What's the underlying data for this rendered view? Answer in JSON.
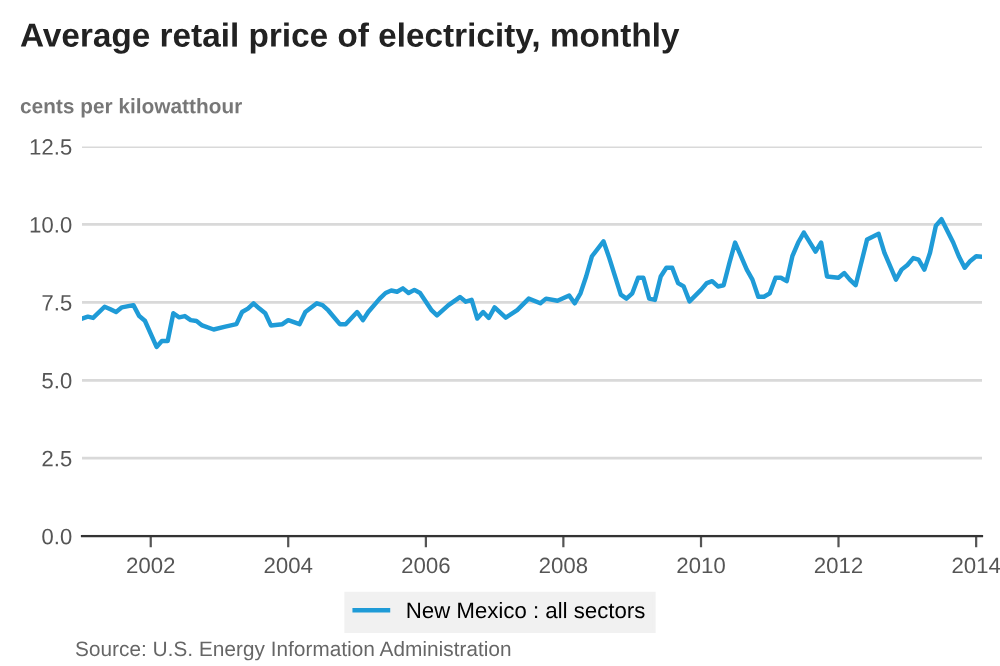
{
  "chart_data": {
    "type": "line",
    "title": "Average retail price of electricity, monthly",
    "ylabel": "cents per kilowatthour",
    "annotations": [
      "Source: U.S. Energy Information Administration"
    ],
    "x": [
      "2001-01",
      "2001-02",
      "2001-03",
      "2001-05",
      "2001-06",
      "2001-07",
      "2001-08",
      "2001-10",
      "2001-11",
      "2001-12",
      "2002-02",
      "2002-03",
      "2002-04",
      "2002-05",
      "2002-06",
      "2002-07",
      "2002-08",
      "2002-09",
      "2002-10",
      "2002-12",
      "2003-02",
      "2003-04",
      "2003-05",
      "2003-06",
      "2003-07",
      "2003-08",
      "2003-09",
      "2003-10",
      "2003-12",
      "2004-01",
      "2004-03",
      "2004-04",
      "2004-06",
      "2004-07",
      "2004-08",
      "2004-10",
      "2004-11",
      "2005-01",
      "2005-02",
      "2005-03",
      "2005-05",
      "2005-06",
      "2005-07",
      "2005-08",
      "2005-09",
      "2005-10",
      "2005-11",
      "2005-12",
      "2006-02",
      "2006-03",
      "2006-05",
      "2006-07",
      "2006-08",
      "2006-09",
      "2006-10",
      "2006-11",
      "2006-12",
      "2007-01",
      "2007-03",
      "2007-05",
      "2007-07",
      "2007-09",
      "2007-10",
      "2007-12",
      "2008-02",
      "2008-03",
      "2008-04",
      "2008-05",
      "2008-06",
      "2008-08",
      "2008-09",
      "2008-11",
      "2008-12",
      "2009-01",
      "2009-02",
      "2009-03",
      "2009-04",
      "2009-05",
      "2009-06",
      "2009-07",
      "2009-08",
      "2009-09",
      "2009-10",
      "2009-11",
      "2010-01",
      "2010-02",
      "2010-03",
      "2010-04",
      "2010-05",
      "2010-06",
      "2010-07",
      "2010-09",
      "2010-10",
      "2010-11",
      "2010-12",
      "2011-01",
      "2011-02",
      "2011-03",
      "2011-04",
      "2011-05",
      "2011-06",
      "2011-07",
      "2011-09",
      "2011-10",
      "2011-11",
      "2012-01",
      "2012-02",
      "2012-03",
      "2012-04",
      "2012-05",
      "2012-06",
      "2012-08",
      "2012-09",
      "2012-11",
      "2012-12",
      "2013-01",
      "2013-02",
      "2013-03",
      "2013-04",
      "2013-05",
      "2013-06",
      "2013-07",
      "2013-09",
      "2013-10",
      "2013-11",
      "2013-12",
      "2014-01",
      "2014-02"
    ],
    "series": [
      {
        "name": "New Mexico : all sectors",
        "color": "#1f9bd7",
        "values": [
          6.98,
          7.04,
          7.0,
          7.36,
          7.28,
          7.19,
          7.34,
          7.41,
          7.06,
          6.91,
          6.07,
          6.26,
          6.26,
          7.15,
          7.02,
          7.06,
          6.93,
          6.9,
          6.76,
          6.63,
          6.72,
          6.8,
          7.19,
          7.3,
          7.47,
          7.3,
          7.15,
          6.76,
          6.8,
          6.93,
          6.8,
          7.19,
          7.47,
          7.41,
          7.24,
          6.8,
          6.8,
          7.19,
          6.93,
          7.19,
          7.62,
          7.8,
          7.88,
          7.84,
          7.95,
          7.8,
          7.9,
          7.8,
          7.24,
          7.08,
          7.41,
          7.67,
          7.52,
          7.58,
          6.98,
          7.19,
          7.0,
          7.34,
          7.01,
          7.25,
          7.62,
          7.47,
          7.62,
          7.55,
          7.72,
          7.47,
          7.79,
          8.33,
          8.98,
          9.46,
          8.92,
          7.75,
          7.62,
          7.79,
          8.29,
          8.29,
          7.62,
          7.58,
          8.33,
          8.61,
          8.61,
          8.12,
          8.01,
          7.53,
          7.9,
          8.12,
          8.18,
          8.01,
          8.05,
          8.77,
          9.42,
          8.55,
          8.23,
          7.68,
          7.68,
          7.79,
          8.29,
          8.29,
          8.18,
          8.98,
          9.42,
          9.74,
          9.13,
          9.42,
          8.33,
          8.29,
          8.44,
          8.23,
          8.05,
          8.77,
          9.52,
          9.7,
          9.09,
          8.23,
          8.55,
          8.7,
          8.92,
          8.87,
          8.55,
          9.09,
          9.96,
          10.17,
          9.42,
          8.98,
          8.61,
          8.83,
          8.98,
          8.96
        ]
      }
    ],
    "xlim": [
      "2001-01",
      "2014-02"
    ],
    "xticks": [
      "2002",
      "2004",
      "2006",
      "2008",
      "2010",
      "2012",
      "2014"
    ],
    "ylim": [
      0,
      12.5
    ],
    "yticks": [
      {
        "value": 0,
        "label": "0.0"
      },
      {
        "value": 2.5,
        "label": "2.5"
      },
      {
        "value": 5,
        "label": "5.0"
      },
      {
        "value": 7.5,
        "label": "7.5"
      },
      {
        "value": 10,
        "label": "10.0"
      },
      {
        "value": 12.5,
        "label": "12.5"
      }
    ],
    "grid": "y",
    "legend": "bottom",
    "marker": "none",
    "line_style": "solid"
  }
}
